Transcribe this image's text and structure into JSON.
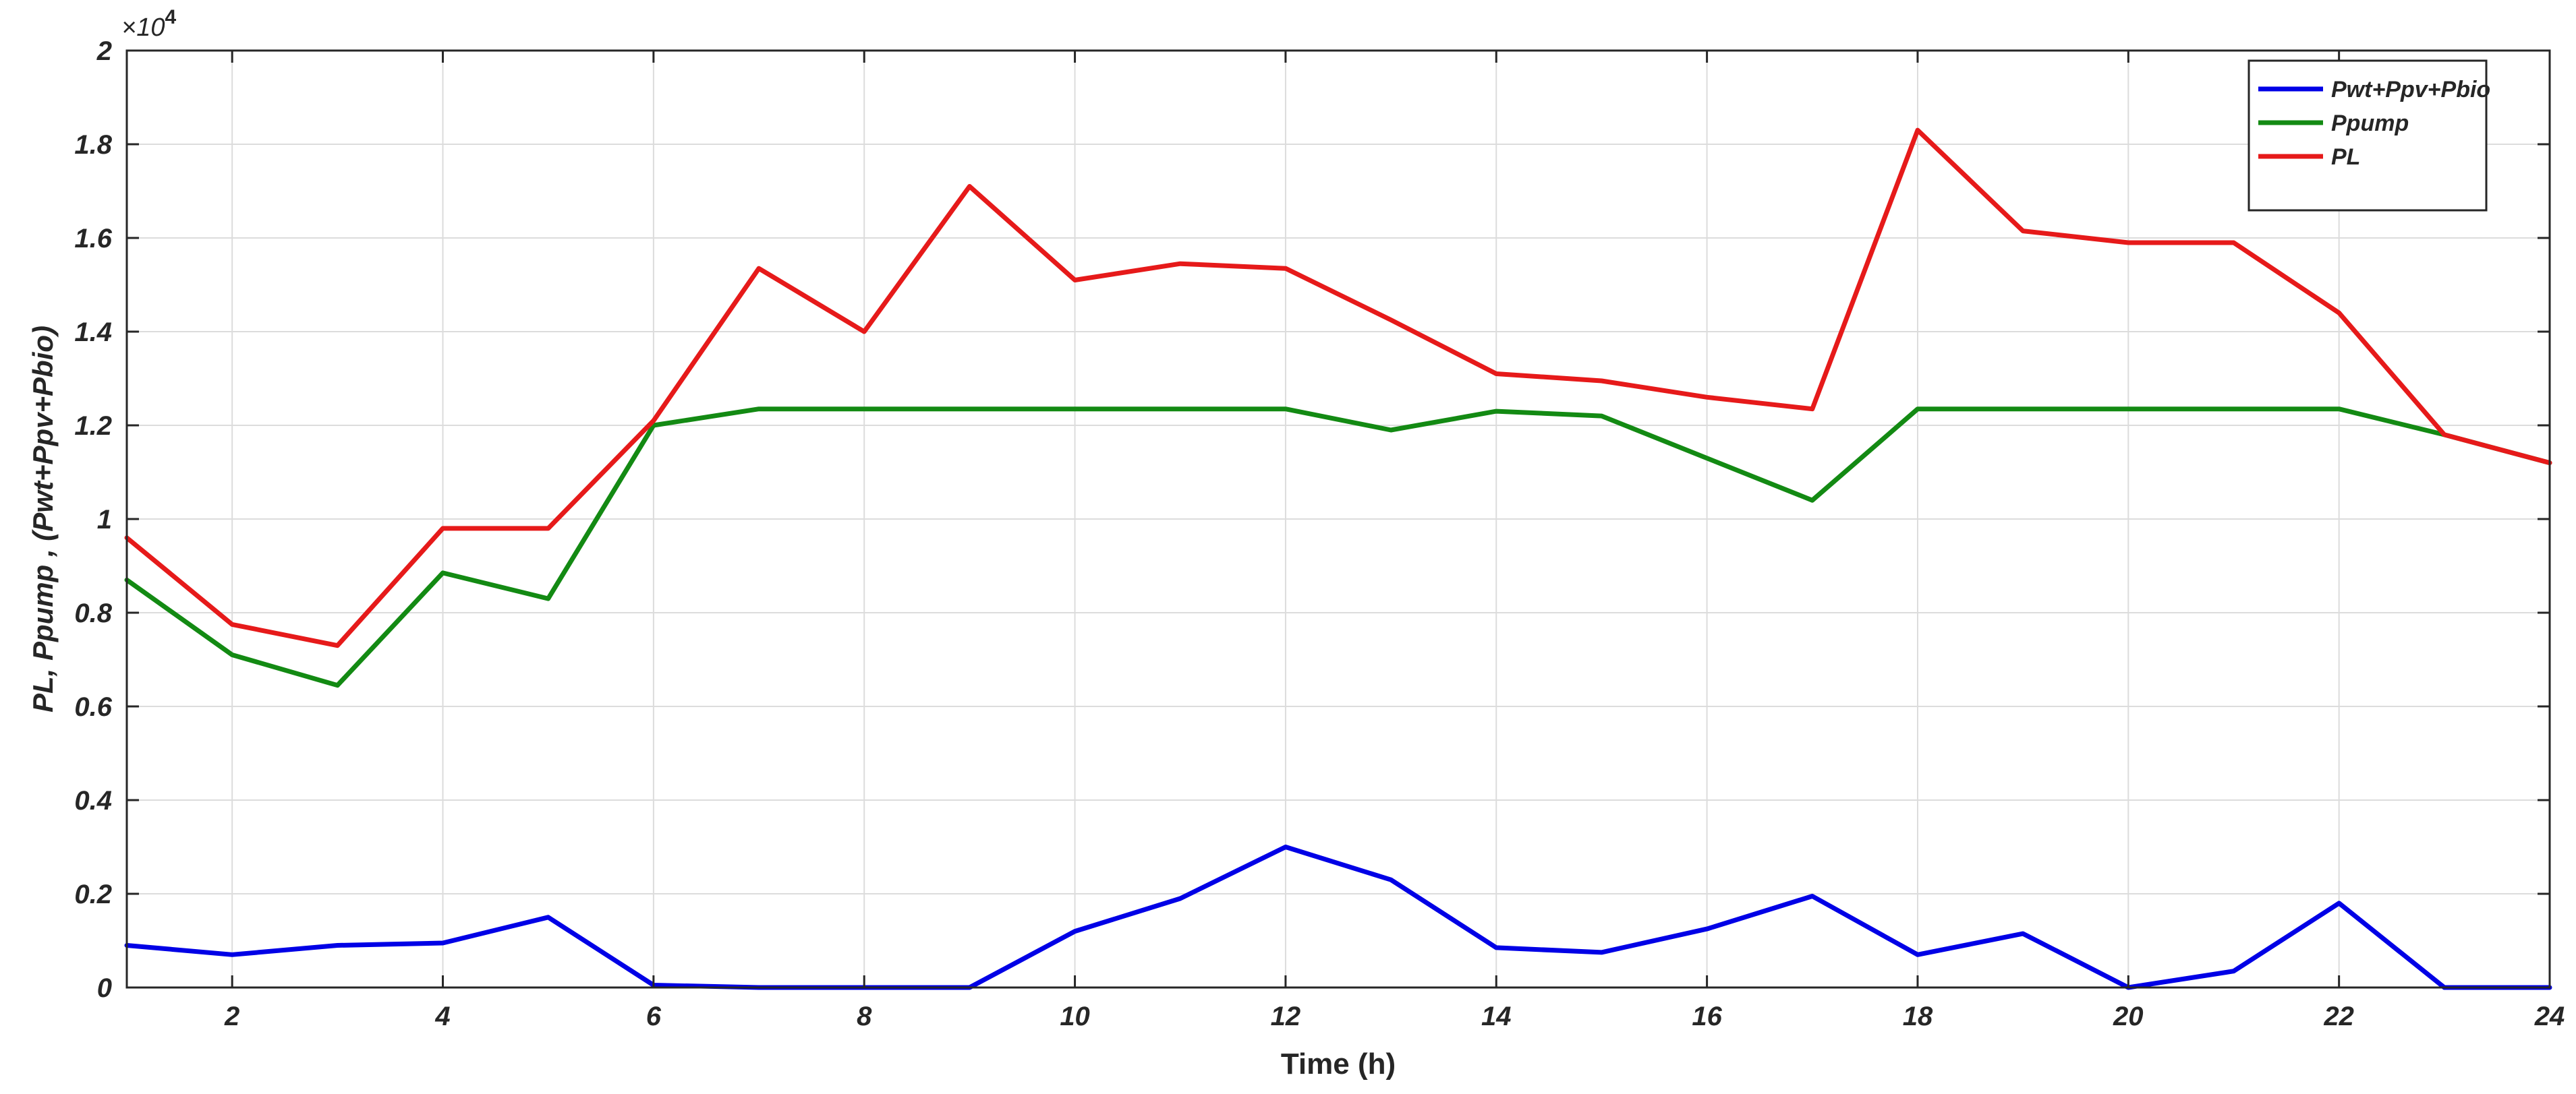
{
  "chart_data": {
    "type": "line",
    "xlabel": "Time (h)",
    "ylabel": "PL, Ppump , (Pwt+Ppv+Pbio)",
    "y_exponent_base": "×10",
    "y_exponent_power": "4",
    "xlim": [
      1,
      24
    ],
    "ylim": [
      0,
      2
    ],
    "x_ticks": [
      2,
      4,
      6,
      8,
      10,
      12,
      14,
      16,
      18,
      20,
      22,
      24
    ],
    "x_tick_labels": [
      "2",
      "4",
      "6",
      "8",
      "10",
      "12",
      "14",
      "16",
      "18",
      "20",
      "22",
      "24"
    ],
    "y_ticks": [
      0,
      0.2,
      0.4,
      0.6,
      0.8,
      1.0,
      1.2,
      1.4,
      1.6,
      1.8,
      2.0
    ],
    "y_tick_labels": [
      "0",
      "0.2",
      "0.4",
      "0.6",
      "0.8",
      "1",
      "1.2",
      "1.4",
      "1.6",
      "1.8",
      "2"
    ],
    "grid": true,
    "legend_position": "top-right",
    "x": [
      1,
      2,
      3,
      4,
      5,
      6,
      7,
      8,
      9,
      10,
      11,
      12,
      13,
      14,
      15,
      16,
      17,
      18,
      19,
      20,
      21,
      22,
      23,
      24
    ],
    "series": [
      {
        "name": "Pwt+Ppv+Pbio",
        "color": "#0000e6",
        "values": [
          0.09,
          0.07,
          0.09,
          0.095,
          0.15,
          0.005,
          0,
          0,
          0,
          0.12,
          0.19,
          0.3,
          0.23,
          0.085,
          0.075,
          0.125,
          0.195,
          0.07,
          0.115,
          0.0,
          0.035,
          0.18,
          0,
          0
        ]
      },
      {
        "name": "Ppump",
        "color": "#138a13",
        "values": [
          0.87,
          0.71,
          0.645,
          0.885,
          0.83,
          1.2,
          1.235,
          1.235,
          1.235,
          1.235,
          1.235,
          1.235,
          1.19,
          1.23,
          1.22,
          1.13,
          1.04,
          1.235,
          1.235,
          1.235,
          1.235,
          1.235,
          1.18,
          1.12
        ]
      },
      {
        "name": "PL",
        "color": "#e61a1a",
        "values": [
          0.96,
          0.775,
          0.73,
          0.98,
          0.98,
          1.21,
          1.535,
          1.4,
          1.71,
          1.51,
          1.545,
          1.535,
          1.425,
          1.31,
          1.295,
          1.26,
          1.235,
          1.83,
          1.615,
          1.59,
          1.59,
          1.44,
          1.18,
          1.12
        ]
      }
    ]
  }
}
